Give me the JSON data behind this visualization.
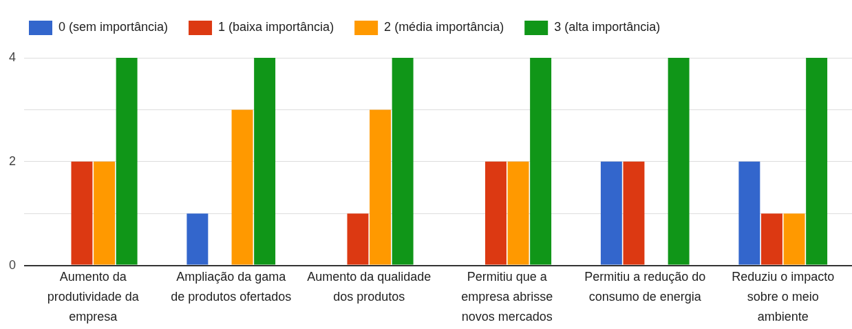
{
  "chart_data": {
    "type": "bar",
    "categories": [
      "Aumento da produtividade da empresa",
      "Ampliação da gama de produtos ofertados",
      "Aumento da qualidade dos produtos",
      "Permitiu que a empresa abrisse novos mercados",
      "Permitiu a redução do consumo de energia",
      "Reduziu o impacto sobre o meio ambiente"
    ],
    "series": [
      {
        "name": "0 (sem importância)",
        "color": "#3366cc",
        "values": [
          0,
          1,
          0,
          0,
          2,
          2
        ]
      },
      {
        "name": "1 (baixa importância)",
        "color": "#dc3912",
        "values": [
          2,
          0,
          1,
          2,
          2,
          1
        ]
      },
      {
        "name": "2 (média importância)",
        "color": "#ff9900",
        "values": [
          2,
          3,
          3,
          2,
          0,
          1
        ]
      },
      {
        "name": "3 (alta importância)",
        "color": "#109618",
        "values": [
          4,
          4,
          4,
          4,
          4,
          4
        ]
      }
    ],
    "ylim": [
      0,
      4
    ],
    "yticks": [
      0,
      {
        "value": 1,
        "label": null
      },
      2,
      {
        "value": 3,
        "label": null
      },
      4
    ],
    "grid": "y",
    "legend": "top left"
  }
}
